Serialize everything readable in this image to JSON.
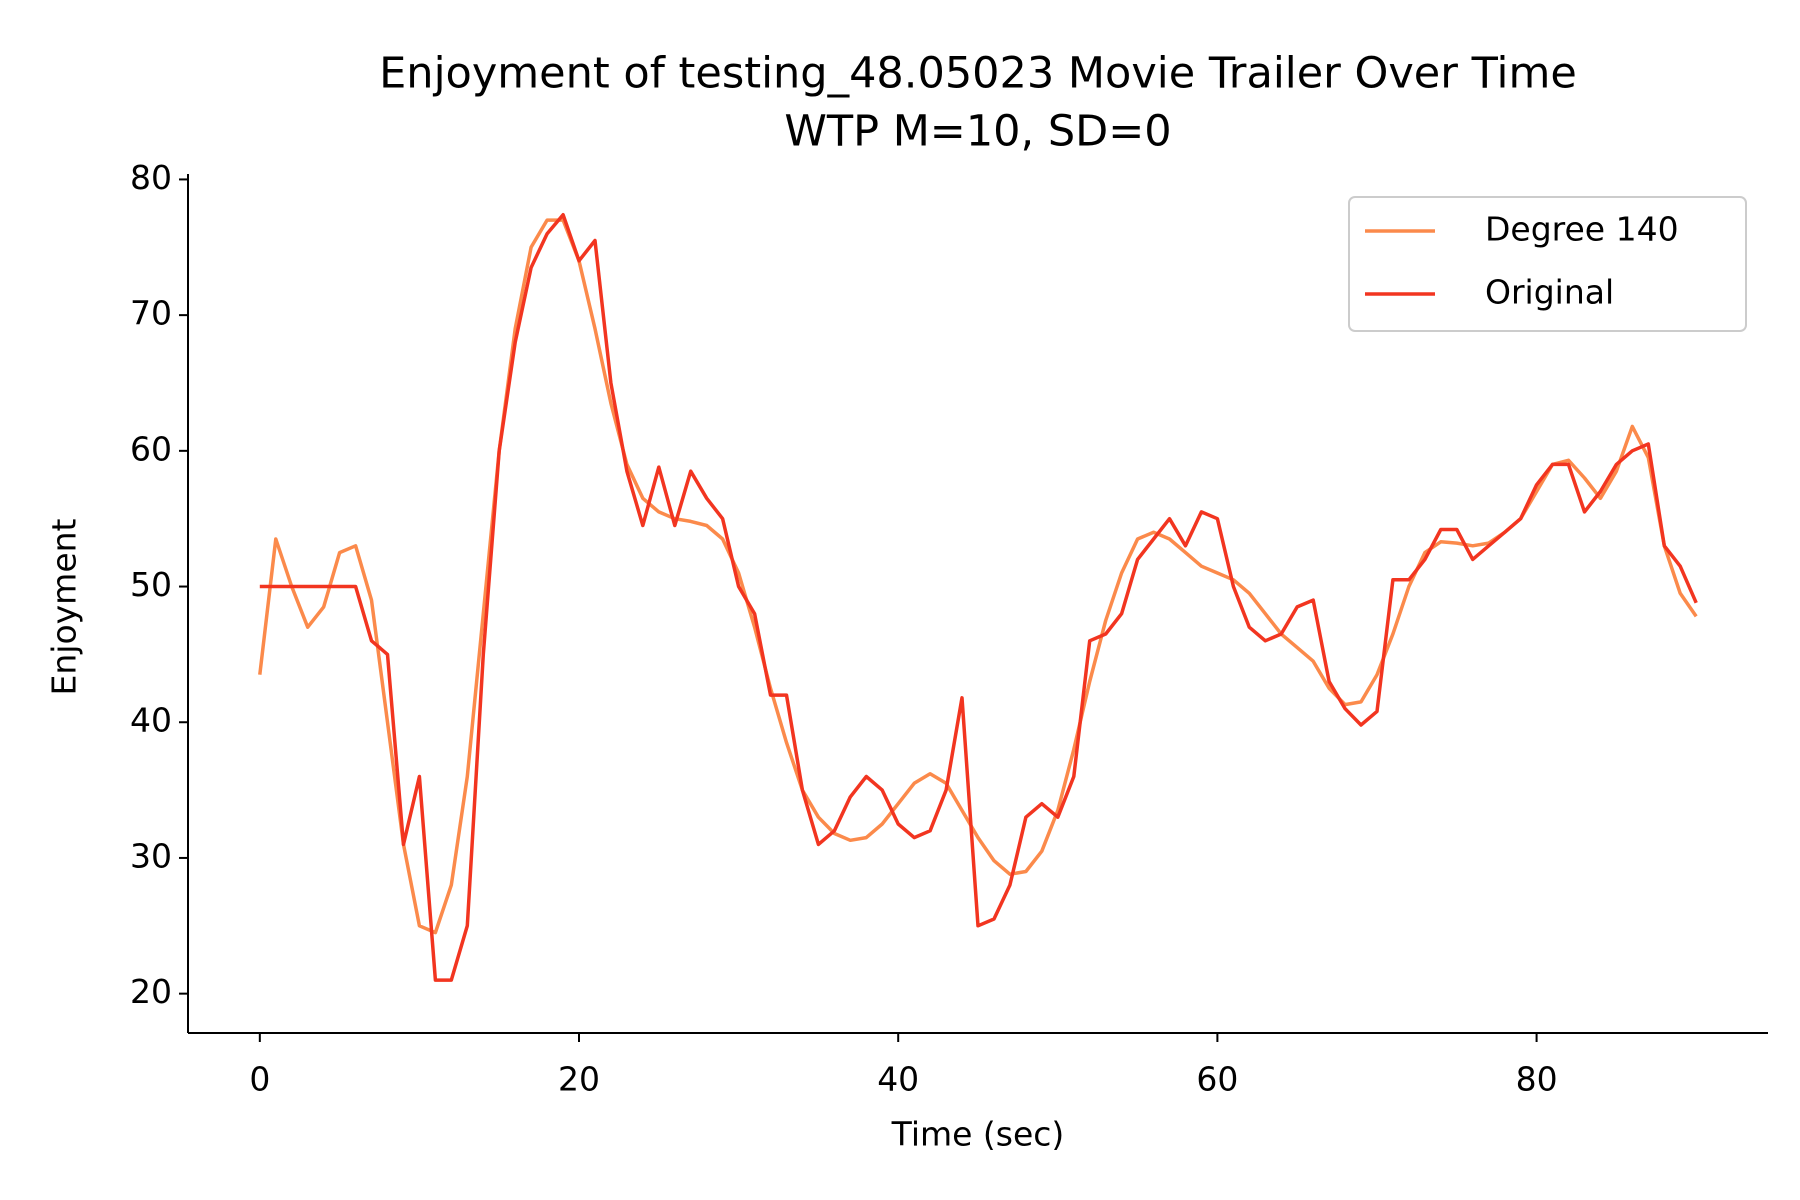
{
  "chart_data": {
    "type": "line",
    "title": "Enjoyment of testing_48.05023 Movie Trailer Over Time",
    "subtitle": "WTP M=10, SD=0",
    "x_label": "Time (sec)",
    "y_label": "Enjoyment",
    "x": [
      0,
      1,
      2,
      3,
      4,
      5,
      6,
      7,
      8,
      9,
      10,
      11,
      12,
      13,
      14,
      15,
      16,
      17,
      18,
      19,
      20,
      21,
      22,
      23,
      24,
      25,
      26,
      27,
      28,
      29,
      30,
      31,
      32,
      33,
      34,
      35,
      36,
      37,
      38,
      39,
      40,
      41,
      42,
      43,
      44,
      45,
      46,
      47,
      48,
      49,
      50,
      51,
      52,
      53,
      54,
      55,
      56,
      57,
      58,
      59,
      60,
      61,
      62,
      63,
      64,
      65,
      66,
      67,
      68,
      69,
      70,
      71,
      72,
      73,
      74,
      75,
      76,
      77,
      78,
      79,
      80,
      81,
      82,
      83,
      84,
      85,
      86,
      87,
      88,
      89,
      90
    ],
    "series": [
      {
        "name": "Degree 140",
        "color": "#fb8a4b",
        "values": [
          43.5,
          53.5,
          50,
          47,
          48.5,
          52.5,
          53,
          49,
          40,
          31,
          25,
          24.5,
          28,
          36,
          48,
          60,
          69,
          75,
          77,
          77,
          74,
          69,
          63.5,
          59,
          56.5,
          55.5,
          55,
          54.8,
          54.5,
          53.5,
          51,
          47,
          42.5,
          38.5,
          35,
          33,
          31.8,
          31.3,
          31.5,
          32.5,
          34,
          35.5,
          36.2,
          35.5,
          33.5,
          31.5,
          29.8,
          28.8,
          29,
          30.5,
          33.5,
          38,
          43,
          47.5,
          51,
          53.5,
          54,
          53.5,
          52.5,
          51.5,
          51,
          50.5,
          49.5,
          48,
          46.5,
          45.5,
          44.5,
          42.5,
          41.3,
          41.5,
          43.5,
          46.5,
          50,
          52.5,
          53.3,
          53.2,
          53,
          53.2,
          54,
          55,
          57,
          59,
          59.3,
          58,
          56.5,
          58.5,
          61.8,
          59.5,
          53,
          49.5,
          47.8
        ]
      },
      {
        "name": "Original",
        "color": "#f23520",
        "values": [
          50,
          50,
          50,
          50,
          50,
          50,
          50,
          46,
          45,
          31,
          36,
          21,
          21,
          25,
          45,
          60,
          68,
          73.5,
          76,
          77.4,
          74,
          75.5,
          65,
          58.5,
          54.5,
          58.8,
          54.5,
          58.5,
          56.5,
          55,
          50,
          48,
          42,
          42,
          35,
          31,
          32,
          34.5,
          36,
          35,
          32.5,
          31.5,
          32,
          35,
          41.8,
          25,
          25.5,
          28,
          33,
          34,
          33,
          36,
          46,
          46.5,
          48,
          52,
          53.5,
          55,
          53,
          55.5,
          55,
          50,
          47,
          46,
          46.5,
          48.5,
          49,
          43,
          41,
          39.8,
          40.8,
          50.5,
          50.5,
          52,
          54.2,
          54.2,
          52,
          53,
          54,
          55,
          57.5,
          59,
          59,
          55.5,
          57,
          59,
          60,
          60.5,
          53,
          51.5,
          48.8
        ]
      }
    ],
    "xlim": [
      -4.5,
      94.5
    ],
    "xticks": [
      0,
      20,
      40,
      60,
      80
    ],
    "ylim": [
      17.1,
      80.4
    ],
    "yticks": [
      20,
      30,
      40,
      50,
      60,
      70,
      80
    ],
    "legend": "upper right",
    "grid": false
  }
}
